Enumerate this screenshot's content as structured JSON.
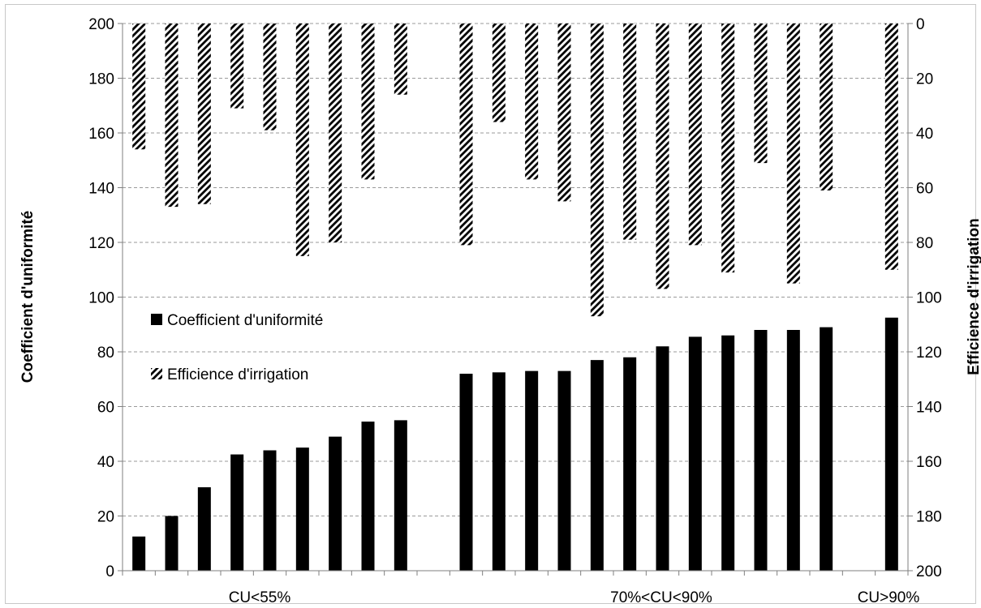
{
  "chart_data": {
    "type": "bar",
    "title": "",
    "ylabel": "Coefficient d'uniformité",
    "y2label": "Efficience d'irrigation",
    "ylim": [
      0,
      200
    ],
    "y2lim": [
      0,
      200
    ],
    "y2_inverted": true,
    "yticks": [
      0,
      20,
      40,
      60,
      80,
      100,
      120,
      140,
      160,
      180,
      200
    ],
    "y2ticks": [
      0,
      20,
      40,
      60,
      80,
      100,
      120,
      140,
      160,
      180,
      200
    ],
    "grid": true,
    "legend_position": "left-middle",
    "group_labels": [
      "CU<55%",
      "70%<CU<90%",
      "CU>90%"
    ],
    "series": [
      {
        "name": "Coefficient d'uniformité",
        "style": "solid",
        "color": "#000000",
        "values": [
          12.5,
          20,
          30.5,
          42.5,
          44,
          45,
          49,
          54.5,
          55,
          null,
          72,
          72.5,
          73,
          73,
          77,
          78,
          82,
          85.5,
          86,
          88,
          88,
          89,
          null,
          92.5
        ]
      },
      {
        "name": "Efficience d'irrigation",
        "style": "diagonal-hatch",
        "color": "#000000",
        "values": [
          46,
          67,
          66,
          31,
          39,
          85,
          80,
          57,
          26,
          null,
          81,
          36,
          57,
          65,
          107,
          79,
          97,
          81,
          91,
          51,
          95,
          61,
          null,
          90
        ]
      }
    ]
  }
}
